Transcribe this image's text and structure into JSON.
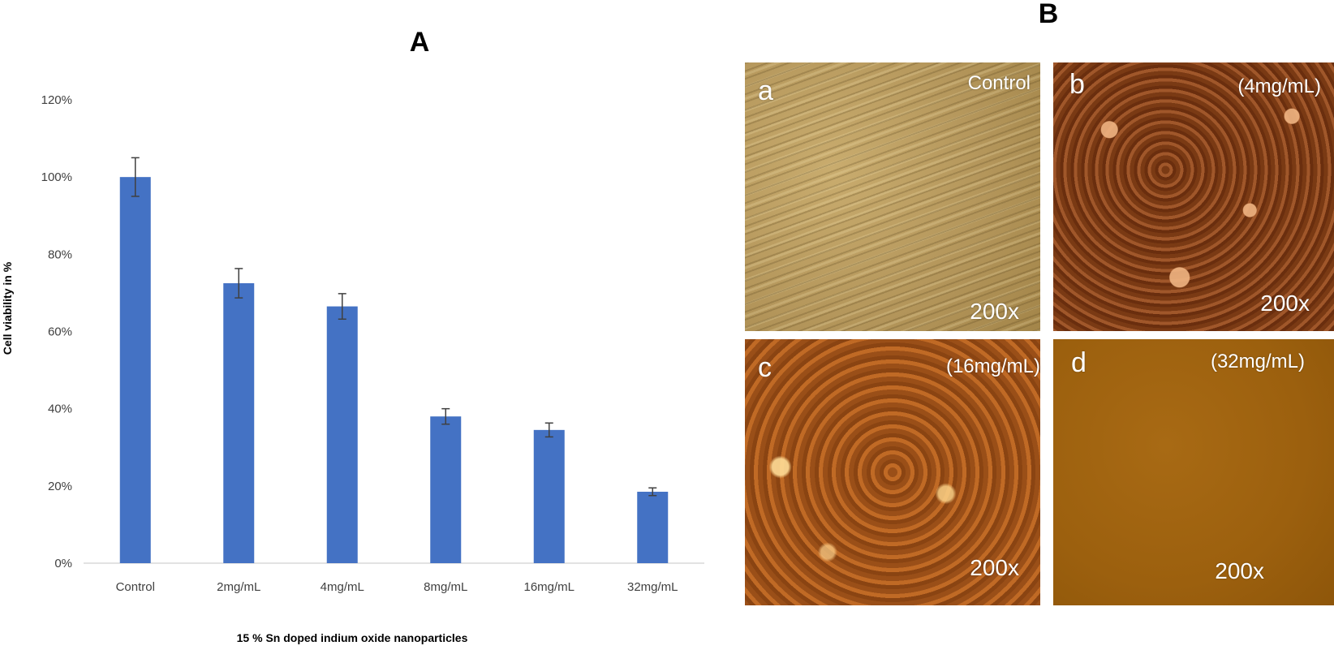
{
  "panel_a_label": "A",
  "panel_b_label": "B",
  "chart_data": {
    "type": "bar",
    "title": "",
    "xlabel": "15 % Sn doped indium oxide nanoparticles",
    "ylabel": "Cell viability in %",
    "categories": [
      "Control",
      "2mg/mL",
      "4mg/mL",
      "8mg/mL",
      "16mg/mL",
      "32mg/mL"
    ],
    "values": [
      100,
      72.5,
      66.5,
      38,
      34.5,
      18.5
    ],
    "errors": [
      5,
      3.8,
      3.3,
      2,
      1.8,
      1
    ],
    "ylim": [
      0,
      120
    ],
    "yticks": [
      "0%",
      "20%",
      "40%",
      "60%",
      "80%",
      "100%",
      "120%"
    ],
    "grid": false,
    "legend": "none",
    "bar_color": "#4472c4",
    "error_color": "#404040"
  },
  "micrographs": [
    {
      "letter": "a",
      "label": "Control",
      "magnification": "200x"
    },
    {
      "letter": "b",
      "label": "(4mg/mL)",
      "magnification": "200x"
    },
    {
      "letter": "c",
      "label": "(16mg/mL)",
      "magnification": "200x"
    },
    {
      "letter": "d",
      "label": "(32mg/mL)",
      "magnification": "200x"
    }
  ]
}
